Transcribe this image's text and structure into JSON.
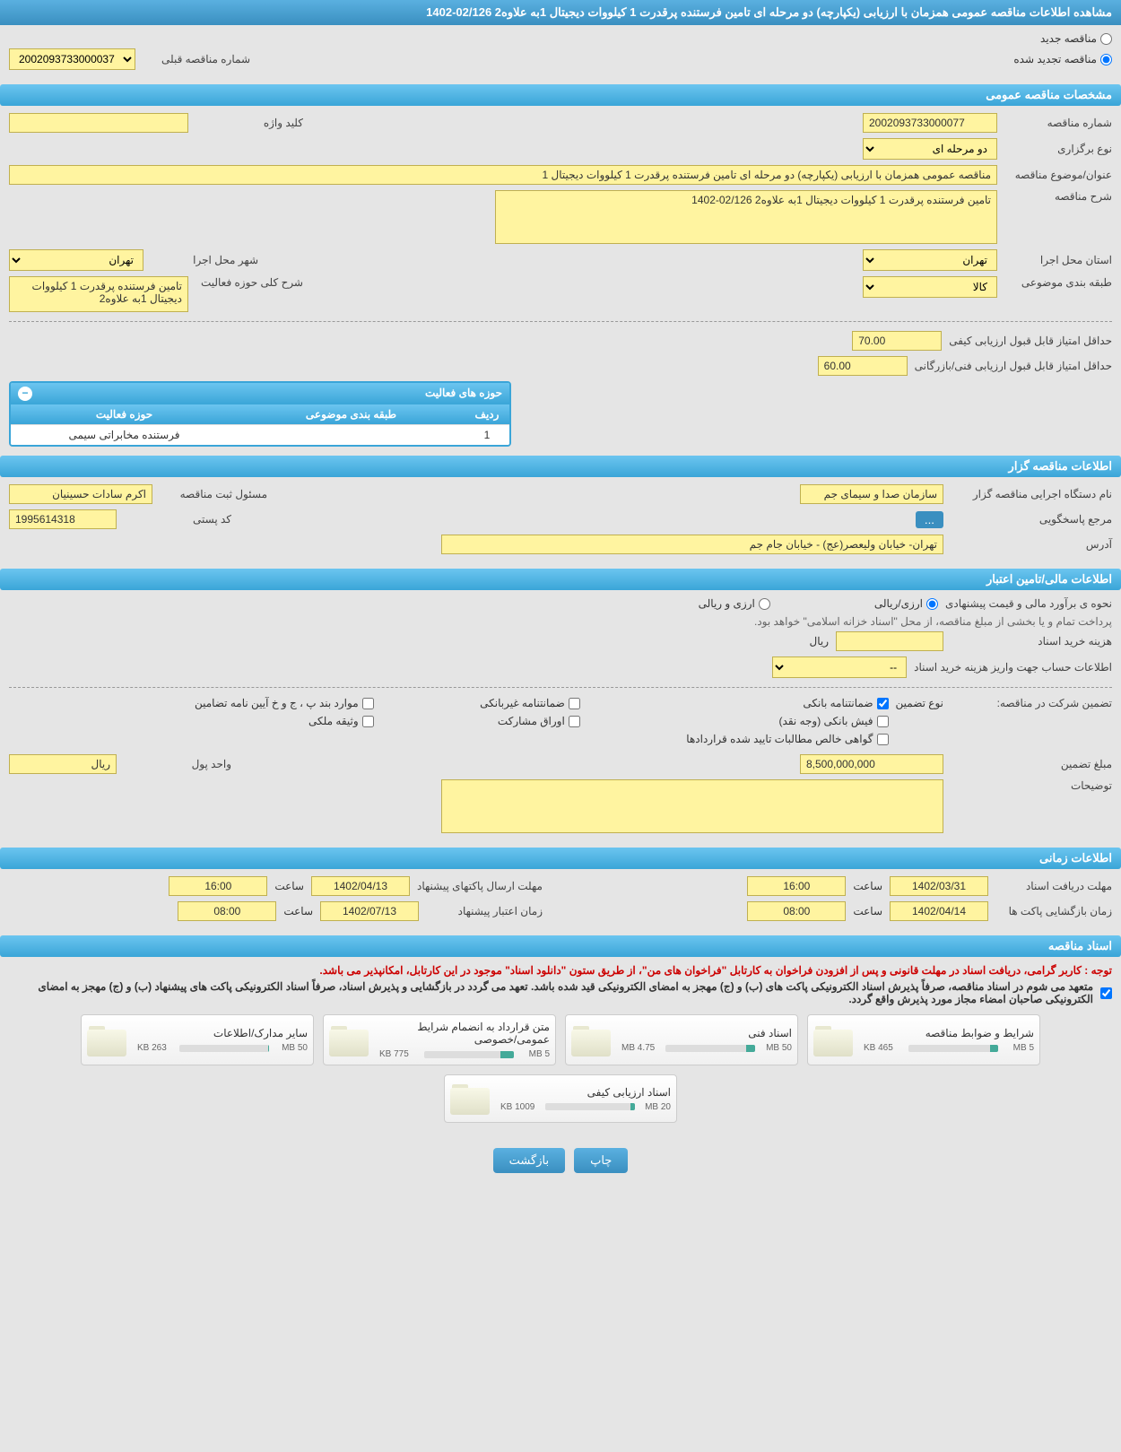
{
  "page_title": "مشاهده اطلاعات مناقصه عمومی همزمان با ارزیابی (یکپارچه) دو مرحله ای تامین فرستنده پرقدرت 1 کیلووات دیجیتال 1به علاوه2 02/126-1402",
  "tender_type": {
    "new_label": "مناقصه جدید",
    "renewed_label": "مناقصه تجدید شده",
    "selected": "renewed"
  },
  "prev_tender": {
    "label": "شماره مناقصه قبلی",
    "value": "2002093733000037"
  },
  "sections": {
    "general": "مشخصات مناقصه عمومی",
    "organizer": "اطلاعات مناقصه گزار",
    "financial": "اطلاعات مالی/تامین اعتبار",
    "timing": "اطلاعات زمانی",
    "docs": "اسناد مناقصه"
  },
  "general": {
    "tender_no_label": "شماره مناقصه",
    "tender_no": "2002093733000077",
    "keyword_label": "کلید واژه",
    "keyword": "",
    "holding_type_label": "نوع برگزاری",
    "holding_type": "دو مرحله ای",
    "subject_label": "عنوان/موضوع مناقصه",
    "subject": "مناقصه عمومی همزمان با ارزیابی (یکپارچه) دو مرحله ای تامین فرستنده پرقدرت 1 کیلووات دیجیتال 1",
    "desc_label": "شرح مناقصه",
    "desc": "تامین فرستنده پرقدرت 1 کیلووات دیجیتال 1به علاوه2  02/126-1402",
    "exec_province_label": "استان محل اجرا",
    "exec_province": "تهران",
    "exec_city_label": "شهر محل اجرا",
    "exec_city": "تهران",
    "subject_class_label": "طبقه بندی موضوعی",
    "subject_class": "کالا",
    "activity_desc_label": "شرح کلی حوزه فعالیت",
    "activity_desc": "تامین فرستنده پرقدرت 1 کیلووات دیجیتال 1به علاوه2",
    "min_qual_score_label": "حداقل امتیاز قابل قبول ارزیابی کیفی",
    "min_qual_score": "70.00",
    "min_tech_score_label": "حداقل امتیاز قابل قبول ارزیابی فنی/بازرگانی",
    "min_tech_score": "60.00"
  },
  "activities": {
    "header": "حوزه های فعالیت",
    "col_idx": "ردیف",
    "col_cat": "طبقه بندی موضوعی",
    "col_act": "حوزه فعالیت",
    "rows": [
      {
        "idx": "1",
        "cat": "",
        "act": "فرستنده مخابراتی سیمی"
      }
    ]
  },
  "organizer": {
    "org_name_label": "نام دستگاه اجرایی مناقصه گزار",
    "org_name": "سازمان صدا و سیمای جم",
    "resp_label": "مسئول ثبت مناقصه",
    "resp": "اکرم سادات حسینیان",
    "contact_label": "مرجع پاسخگویی",
    "contact_btn": "...",
    "postal_label": "کد پستی",
    "postal": "1995614318",
    "address_label": "آدرس",
    "address": "تهران- خیابان ولیعصر(عج) - خیابان جام جم"
  },
  "financial": {
    "estimate_method_label": "نحوه ی برآورد مالی و قیمت پیشنهادی",
    "opt_rial": "ارزی/ریالی",
    "opt_both": "ارزی و ریالی",
    "treasury_note": "پرداخت تمام و یا بخشی از مبلغ مناقصه، از محل \"اسناد خزانه اسلامی\" خواهد بود.",
    "doc_cost_label": "هزینه خرید اسناد",
    "doc_cost": "",
    "currency_label": "ریال",
    "account_label": "اطلاعات حساب جهت واریز هزینه خرید اسناد",
    "account": "--"
  },
  "guarantee": {
    "header_label": "تضمین شرکت در مناقصه:",
    "type_label": "نوع تضمین",
    "opts": {
      "bank": "ضمانتنامه بانکی",
      "nonbank": "ضمانتنامه غیربانکی",
      "items": "موارد بند پ ، ج و خ آیین نامه تضامین",
      "cash": "فیش بانکی (وجه نقد)",
      "bonds": "اوراق مشارکت",
      "property": "وثیقه ملکی",
      "contracts": "گواهی خالص مطالبات تایید شده قراردادها"
    },
    "amount_label": "مبلغ تضمین",
    "amount": "8,500,000,000",
    "unit_label": "واحد پول",
    "unit": "ریال",
    "notes_label": "توضیحات",
    "notes": ""
  },
  "timing": {
    "doc_deadline_label": "مهلت دریافت اسناد",
    "doc_deadline_date": "1402/03/31",
    "doc_deadline_time": "16:00",
    "bid_send_label": "مهلت ارسال پاکتهای پیشنهاد",
    "bid_send_date": "1402/04/13",
    "bid_send_time": "16:00",
    "opening_label": "زمان بازگشایی پاکت ها",
    "opening_date": "1402/04/14",
    "opening_time": "08:00",
    "validity_label": "زمان اعتبار پیشنهاد",
    "validity_date": "1402/07/13",
    "validity_time": "08:00",
    "time_label": "ساعت"
  },
  "docs": {
    "note1": "توجه : کاربر گرامی، دریافت اسناد در مهلت قانونی و پس از افزودن فراخوان به کارتابل \"فراخوان های من\"، از طریق ستون \"دانلود اسناد\" موجود در این کارتابل، امکانپذیر می باشد.",
    "note2": "متعهد می شوم در اسناد مناقصه، صرفاً پذیرش اسناد الکترونیکی پاکت های (ب) و (ج) مهجز به امضای الکترونیکی قید شده باشد. تعهد می گردد در بازگشایی و پذیرش اسناد، صرفاً اسناد الکترونیکی پاکت های پیشنهاد (ب) و (ج) مهجز به امضای الکترونیکی صاحبان امضاء مجاز مورد پذیرش واقع گردد.",
    "items": [
      {
        "title": "شرایط و ضوابط مناقصه",
        "used": "465 KB",
        "total": "5 MB",
        "pct": 9
      },
      {
        "title": "اسناد فنی",
        "used": "4.75 MB",
        "total": "50 MB",
        "pct": 10
      },
      {
        "title": "متن قرارداد به انضمام شرایط عمومی/خصوصی",
        "used": "775 KB",
        "total": "5 MB",
        "pct": 15
      },
      {
        "title": "سایر مدارک/اطلاعات",
        "used": "263 KB",
        "total": "50 MB",
        "pct": 1
      },
      {
        "title": "اسناد ارزیابی کیفی",
        "used": "1009 KB",
        "total": "20 MB",
        "pct": 5
      }
    ]
  },
  "buttons": {
    "print": "چاپ",
    "back": "بازگشت"
  },
  "colors": {
    "header_bg": "#3aa5d8",
    "highlight_bg": "#fff4a0"
  }
}
